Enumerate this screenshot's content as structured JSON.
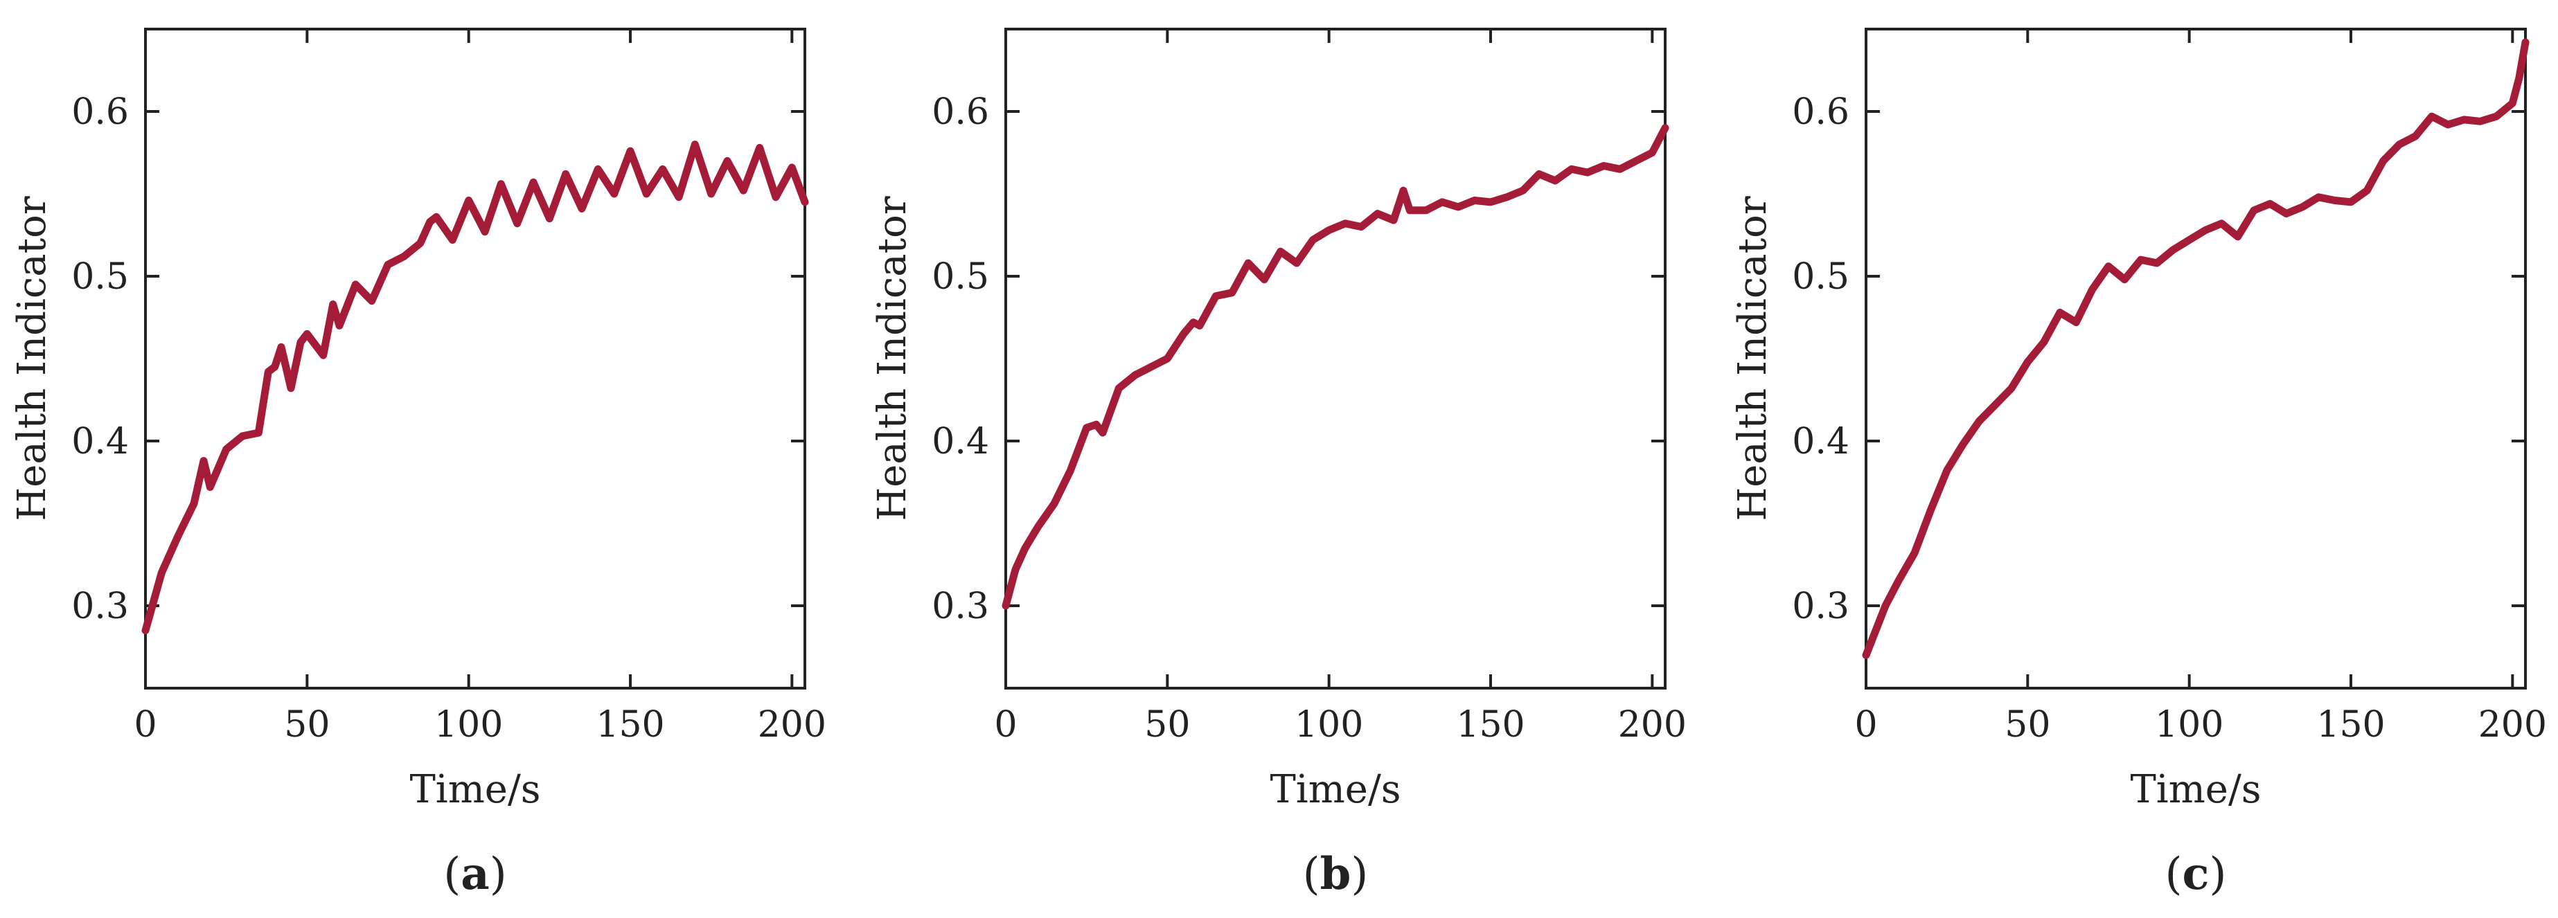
{
  "series_color": "#a51c38",
  "chart_data": [
    {
      "type": "line",
      "caption": "a",
      "xlabel": "Time/s",
      "ylabel": "Health Indicator",
      "xlim": [
        0,
        204
      ],
      "ylim": [
        0.25,
        0.65
      ],
      "xticks": [
        0,
        50,
        100,
        150,
        200
      ],
      "xtick_labels": [
        "0",
        "50",
        "100",
        "150",
        "200"
      ],
      "yticks": [
        0.3,
        0.4,
        0.5,
        0.6
      ],
      "ytick_labels": [
        "0.3",
        "0.4",
        "0.5",
        "0.6"
      ],
      "series": [
        {
          "name": "Health Indicator",
          "x": [
            0,
            5,
            10,
            15,
            18,
            20,
            25,
            30,
            35,
            38,
            40,
            42,
            45,
            48,
            50,
            55,
            58,
            60,
            65,
            70,
            75,
            80,
            85,
            88,
            90,
            95,
            100,
            105,
            110,
            115,
            120,
            125,
            130,
            135,
            140,
            145,
            150,
            155,
            160,
            165,
            170,
            175,
            180,
            185,
            190,
            195,
            200,
            204
          ],
          "y": [
            0.285,
            0.32,
            0.342,
            0.362,
            0.388,
            0.372,
            0.395,
            0.403,
            0.405,
            0.442,
            0.445,
            0.457,
            0.432,
            0.46,
            0.465,
            0.452,
            0.483,
            0.47,
            0.495,
            0.485,
            0.507,
            0.512,
            0.52,
            0.533,
            0.536,
            0.522,
            0.546,
            0.527,
            0.556,
            0.532,
            0.557,
            0.535,
            0.562,
            0.541,
            0.565,
            0.55,
            0.576,
            0.55,
            0.565,
            0.548,
            0.58,
            0.55,
            0.57,
            0.552,
            0.578,
            0.548,
            0.566,
            0.545
          ]
        }
      ]
    },
    {
      "type": "line",
      "caption": "b",
      "xlabel": "Time/s",
      "ylabel": "Health Indicator",
      "xlim": [
        0,
        204
      ],
      "ylim": [
        0.25,
        0.65
      ],
      "xticks": [
        0,
        50,
        100,
        150,
        200
      ],
      "xtick_labels": [
        "0",
        "50",
        "100",
        "150",
        "200"
      ],
      "yticks": [
        0.3,
        0.4,
        0.5,
        0.6
      ],
      "ytick_labels": [
        "0.3",
        "0.4",
        "0.5",
        "0.6"
      ],
      "series": [
        {
          "name": "Health Indicator",
          "x": [
            0,
            3,
            6,
            10,
            15,
            20,
            25,
            28,
            30,
            35,
            40,
            45,
            50,
            55,
            58,
            60,
            65,
            70,
            75,
            80,
            85,
            90,
            95,
            100,
            105,
            110,
            115,
            120,
            123,
            125,
            130,
            135,
            140,
            145,
            150,
            155,
            160,
            165,
            170,
            175,
            180,
            185,
            190,
            195,
            200,
            204
          ],
          "y": [
            0.3,
            0.322,
            0.335,
            0.348,
            0.362,
            0.382,
            0.408,
            0.41,
            0.405,
            0.432,
            0.44,
            0.445,
            0.45,
            0.465,
            0.472,
            0.47,
            0.488,
            0.49,
            0.508,
            0.498,
            0.515,
            0.508,
            0.522,
            0.528,
            0.532,
            0.53,
            0.538,
            0.534,
            0.552,
            0.54,
            0.54,
            0.545,
            0.542,
            0.546,
            0.545,
            0.548,
            0.552,
            0.562,
            0.558,
            0.565,
            0.563,
            0.567,
            0.565,
            0.57,
            0.575,
            0.59
          ]
        }
      ]
    },
    {
      "type": "line",
      "caption": "c",
      "xlabel": "Time/s",
      "ylabel": "Health Indicator",
      "xlim": [
        0,
        204
      ],
      "ylim": [
        0.25,
        0.65
      ],
      "xticks": [
        0,
        50,
        100,
        150,
        200
      ],
      "xtick_labels": [
        "0",
        "50",
        "100",
        "150",
        "200"
      ],
      "yticks": [
        0.3,
        0.4,
        0.5,
        0.6
      ],
      "ytick_labels": [
        "0.3",
        "0.4",
        "0.5",
        "0.6"
      ],
      "series": [
        {
          "name": "Health Indicator",
          "x": [
            0,
            3,
            6,
            10,
            15,
            20,
            25,
            30,
            35,
            40,
            45,
            50,
            55,
            60,
            65,
            70,
            75,
            80,
            85,
            90,
            95,
            100,
            105,
            110,
            115,
            120,
            125,
            130,
            135,
            140,
            145,
            150,
            155,
            160,
            165,
            170,
            175,
            180,
            185,
            190,
            195,
            200,
            202,
            204
          ],
          "y": [
            0.27,
            0.285,
            0.3,
            0.315,
            0.332,
            0.358,
            0.382,
            0.398,
            0.412,
            0.422,
            0.432,
            0.448,
            0.46,
            0.478,
            0.472,
            0.492,
            0.506,
            0.498,
            0.51,
            0.508,
            0.516,
            0.522,
            0.528,
            0.532,
            0.524,
            0.54,
            0.544,
            0.538,
            0.542,
            0.548,
            0.546,
            0.545,
            0.552,
            0.57,
            0.58,
            0.585,
            0.597,
            0.592,
            0.595,
            0.594,
            0.597,
            0.605,
            0.62,
            0.642
          ]
        }
      ]
    }
  ]
}
